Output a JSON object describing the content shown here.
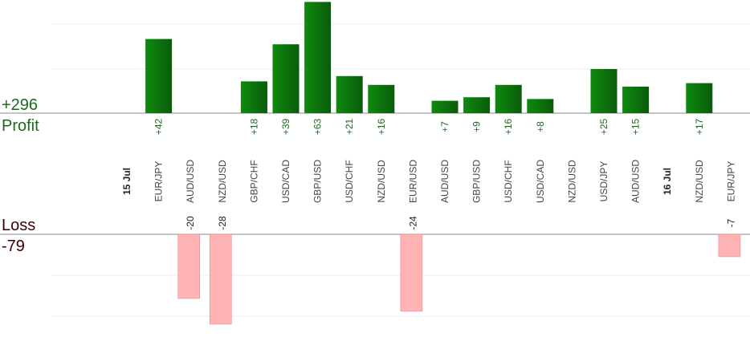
{
  "summary": {
    "profit_total": "+296",
    "profit_label": "Profit",
    "loss_label": "Loss",
    "loss_total": "-79"
  },
  "colors": {
    "profit_bar_dark": "#0a5c0a",
    "profit_bar_light": "#0e8a0e",
    "loss_bar": "#ffb3b5",
    "loss_bar_edge": "#e08080",
    "grid": "#eeeeee",
    "axis": "#888888"
  },
  "chart_data": {
    "type": "bar",
    "categories": [
      "15 Jul",
      "EUR/JPY",
      "AUD/USD",
      "NZD/USD",
      "GBP/CHF",
      "USD/CAD",
      "GBP/USD",
      "USD/CHF",
      "NZD/USD",
      "EUR/USD",
      "AUD/USD",
      "GBP/USD",
      "USD/CHF",
      "USD/CAD",
      "NZD/USD",
      "USD/JPY",
      "AUD/USD",
      "16 Jul",
      "NZD/USD",
      "EUR/JPY"
    ],
    "date_separators": [
      "15 Jul",
      "16 Jul"
    ],
    "series": [
      {
        "name": "Profit",
        "values": [
          null,
          42,
          null,
          null,
          18,
          39,
          63,
          21,
          16,
          null,
          7,
          9,
          16,
          8,
          null,
          25,
          15,
          null,
          17,
          null
        ]
      },
      {
        "name": "Loss",
        "values": [
          null,
          null,
          -20,
          -28,
          null,
          null,
          null,
          null,
          null,
          -24,
          null,
          null,
          null,
          null,
          null,
          null,
          null,
          null,
          null,
          -7
        ]
      }
    ],
    "profit_ylim": [
      0,
      25
    ],
    "loss_ylim": [
      -25,
      0
    ],
    "grid": true
  }
}
